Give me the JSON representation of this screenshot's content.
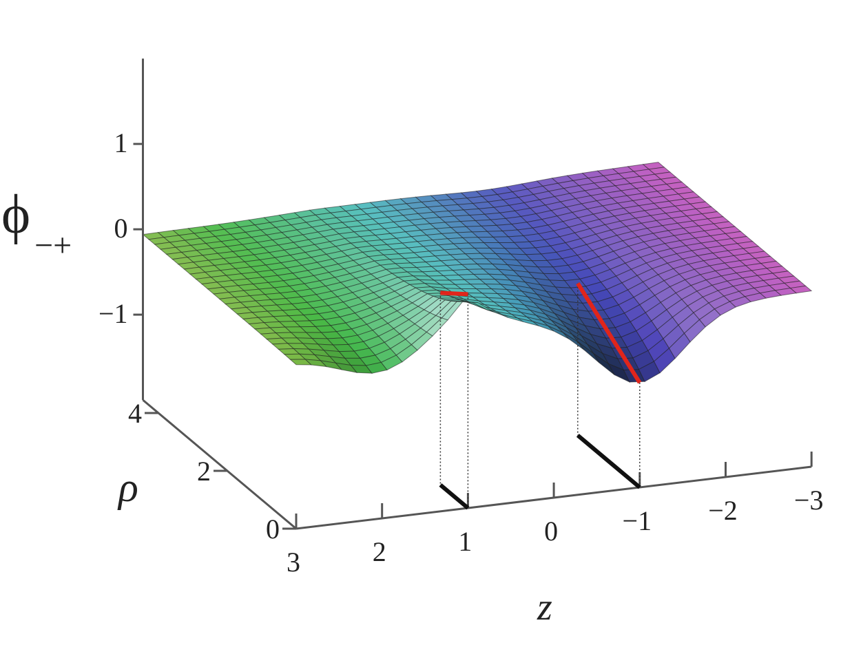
{
  "chart_data": {
    "type": "surface",
    "z_label": "ϕ",
    "z_label_sub": "−+",
    "x_label": "z",
    "y_label": "ρ",
    "xlim": [
      3,
      -3
    ],
    "xticks": [
      3,
      2,
      1,
      0,
      {
        "value": -1,
        "label": "−1"
      },
      {
        "value": -2,
        "label": "−2"
      },
      {
        "value": -3,
        "label": "−3"
      }
    ],
    "ylim": [
      0,
      4.45
    ],
    "yticks": [
      0,
      2,
      4
    ],
    "zlim": [
      -2,
      2
    ],
    "zticks": [
      1,
      0,
      {
        "value": -1,
        "label": "−1"
      }
    ]
  }
}
